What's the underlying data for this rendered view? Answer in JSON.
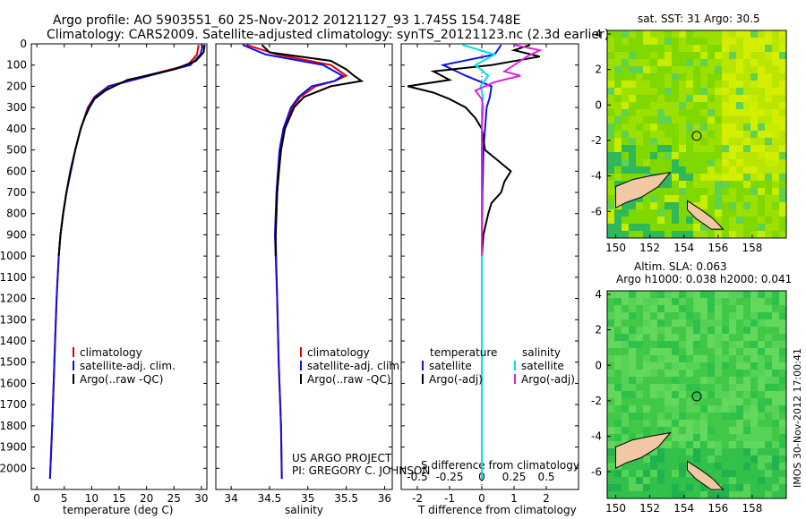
{
  "header": {
    "line1": "Argo profile: AO 5903551_60 25-Nov-2012 20121127_93 1.745S 154.748E",
    "line2": "Climatology: CARS2009. Satellite-adjusted climatology: synTS_20121123.nc (2.3d earlier)"
  },
  "credits": {
    "project": "US ARGO PROJECT",
    "pi": "PI: GREGORY C. JOHNSON",
    "stamp": "IMOS 30-Nov-2012 17:00:41"
  },
  "colors": {
    "climatology": "#e00000",
    "satellite": "#1010e0",
    "argo": "#000000",
    "sal_satellite": "#00e0e0",
    "sal_argo": "#e020e0"
  },
  "chart_data": [
    {
      "type": "line",
      "id": "temperature",
      "xlabel": "temperature (deg C)",
      "ylabel": "",
      "xlim": [
        -1,
        31
      ],
      "ylim": [
        2100,
        0
      ],
      "xticks": [
        0,
        5,
        10,
        15,
        20,
        25,
        30
      ],
      "yticks": [
        0,
        100,
        200,
        300,
        400,
        500,
        600,
        700,
        800,
        900,
        1000,
        1100,
        1200,
        1300,
        1400,
        1500,
        1600,
        1700,
        1800,
        1900,
        2000
      ],
      "legend": [
        "climatology",
        "satellite-adj. clim.",
        "Argo(..raw -QC)"
      ],
      "series": [
        {
          "name": "climatology",
          "depth": [
            5,
            50,
            100,
            150,
            200,
            250,
            300,
            400,
            500,
            600,
            700,
            800,
            900,
            1000,
            1200,
            1500,
            1800,
            2050
          ],
          "values": [
            29.5,
            29.2,
            27.5,
            20,
            13,
            10.5,
            9.3,
            8.0,
            7.0,
            6.2,
            5.4,
            4.8,
            4.3,
            4.0,
            3.6,
            3.2,
            2.8,
            2.4
          ]
        },
        {
          "name": "satellite-adj. clim.",
          "depth": [
            5,
            50,
            100,
            150,
            200,
            250,
            300,
            400,
            500,
            600,
            700,
            800,
            900,
            1000,
            1200,
            1500,
            1800,
            2050
          ],
          "values": [
            30.3,
            29.8,
            28.0,
            20.5,
            13.2,
            10.6,
            9.4,
            8.0,
            7.0,
            6.2,
            5.4,
            4.8,
            4.3,
            4.0,
            3.6,
            3.2,
            2.8,
            2.4
          ]
        },
        {
          "name": "Argo(..raw -QC)",
          "depth": [
            5,
            40,
            80,
            120,
            170,
            220,
            260,
            300,
            350,
            400,
            450,
            500,
            600,
            700,
            800,
            900,
            1000
          ],
          "values": [
            30.6,
            30.4,
            29.0,
            25.0,
            16.5,
            12.5,
            10.5,
            9.6,
            8.7,
            8.0,
            7.5,
            7.0,
            6.1,
            5.4,
            4.8,
            4.3,
            4.0
          ]
        }
      ]
    },
    {
      "type": "line",
      "id": "salinity",
      "xlabel": "salinity",
      "xlim": [
        33.8,
        36.1
      ],
      "ylim": [
        2100,
        0
      ],
      "xticks": [
        34,
        34.5,
        35,
        35.5,
        36
      ],
      "legend": [
        "climatology",
        "satellite-adj. clim.",
        "Argo(..raw -QC)"
      ],
      "series": [
        {
          "name": "climatology",
          "depth": [
            5,
            50,
            100,
            150,
            175,
            200,
            250,
            300,
            400,
            500,
            700,
            900,
            1200,
            1500,
            1800,
            2050
          ],
          "values": [
            34.2,
            34.6,
            35.3,
            35.5,
            35.35,
            35.1,
            34.9,
            34.8,
            34.7,
            34.65,
            34.6,
            34.58,
            34.6,
            34.62,
            34.65,
            34.66
          ]
        },
        {
          "name": "satellite-adj. clim.",
          "depth": [
            5,
            50,
            100,
            150,
            175,
            200,
            250,
            300,
            400,
            500,
            700,
            900,
            1200,
            1500,
            1800,
            2050
          ],
          "values": [
            34.15,
            34.45,
            35.2,
            35.45,
            35.35,
            35.05,
            34.88,
            34.78,
            34.68,
            34.63,
            34.59,
            34.57,
            34.6,
            34.62,
            34.65,
            34.66
          ]
        },
        {
          "name": "Argo(..raw -QC)",
          "depth": [
            5,
            40,
            80,
            120,
            150,
            175,
            200,
            250,
            300,
            400,
            500,
            600,
            700,
            800,
            900,
            1000
          ],
          "values": [
            34.4,
            34.5,
            35.3,
            35.5,
            35.6,
            35.7,
            35.3,
            34.95,
            34.82,
            34.7,
            34.65,
            34.62,
            34.6,
            34.59,
            34.58,
            34.58
          ]
        }
      ]
    },
    {
      "type": "line",
      "id": "difference",
      "xlabel": "T difference from climatology",
      "xlabel2": "S difference from climatology",
      "xlim": [
        -2.5,
        3.0
      ],
      "ylim": [
        2100,
        0
      ],
      "xticks": [
        -2,
        -1,
        0,
        1,
        2
      ],
      "xticks2": [
        -0.5,
        -0.25,
        0,
        0.25,
        0.5
      ],
      "legend_temperature": "temperature",
      "legend_salinity": "salinity",
      "legend_items": [
        "satellite",
        "Argo(-adj)",
        "satellite",
        "Argo(-adj)"
      ],
      "series": [
        {
          "name": "temperature satellite",
          "depth": [
            5,
            50,
            100,
            150,
            200,
            250,
            300,
            400,
            500,
            700,
            1000,
            1500,
            2050
          ],
          "values": [
            0.6,
            0.4,
            -1.2,
            -0.5,
            0.3,
            0.25,
            0.15,
            0.1,
            0.05,
            0.02,
            0,
            0,
            0
          ]
        },
        {
          "name": "temperature Argo(-adj)",
          "depth": [
            5,
            30,
            60,
            100,
            130,
            170,
            200,
            230,
            260,
            300,
            350,
            400,
            450,
            500,
            550,
            600,
            650,
            700,
            750,
            800,
            900,
            1000
          ],
          "values": [
            1.5,
            1.0,
            1.8,
            0.3,
            -1.5,
            -1.0,
            -2.3,
            -1.5,
            -1.0,
            -0.5,
            -0.2,
            0,
            0.05,
            0.1,
            0.5,
            0.9,
            0.7,
            0.6,
            0.3,
            0.2,
            0.05,
            0
          ]
        },
        {
          "name": "salinity satellite",
          "depth": [
            5,
            50,
            100,
            150,
            200,
            250,
            300,
            400,
            500,
            700,
            1000,
            1500,
            2050
          ],
          "values": [
            -0.3,
            0.2,
            -0.1,
            0.1,
            -0.02,
            0.02,
            0.0,
            0.0,
            0,
            0,
            0,
            0,
            0
          ]
        },
        {
          "name": "salinity Argo(-adj)",
          "depth": [
            5,
            30,
            60,
            100,
            130,
            150,
            180,
            220,
            260,
            300,
            400,
            500,
            700,
            1000
          ],
          "values": [
            0.5,
            0.9,
            0.7,
            0.5,
            0.35,
            0.6,
            0.2,
            -0.1,
            0.0,
            0.02,
            0,
            0,
            0,
            0
          ]
        }
      ]
    },
    {
      "type": "heatmap",
      "id": "sst-map",
      "title": "sat. SST: 31  Argo: 30.5",
      "xlim": [
        149.5,
        160
      ],
      "ylim": [
        -7.5,
        4.2
      ],
      "xticks": [
        150,
        152,
        154,
        156,
        158
      ],
      "yticks": [
        -6,
        -4,
        -2,
        0,
        2,
        4
      ],
      "marker": {
        "lon": 154.748,
        "lat": -1.745
      }
    },
    {
      "type": "heatmap",
      "id": "sla-map",
      "title": "Altim. SLA: 0.063",
      "subtitle": "Argo h1000: 0.038 h2000: 0.041",
      "xlim": [
        149.5,
        160
      ],
      "ylim": [
        -7.5,
        4.2
      ],
      "xticks": [
        150,
        152,
        154,
        156,
        158
      ],
      "yticks": [
        -6,
        -4,
        -2,
        0,
        2,
        4
      ],
      "marker": {
        "lon": 154.748,
        "lat": -1.745
      }
    }
  ]
}
